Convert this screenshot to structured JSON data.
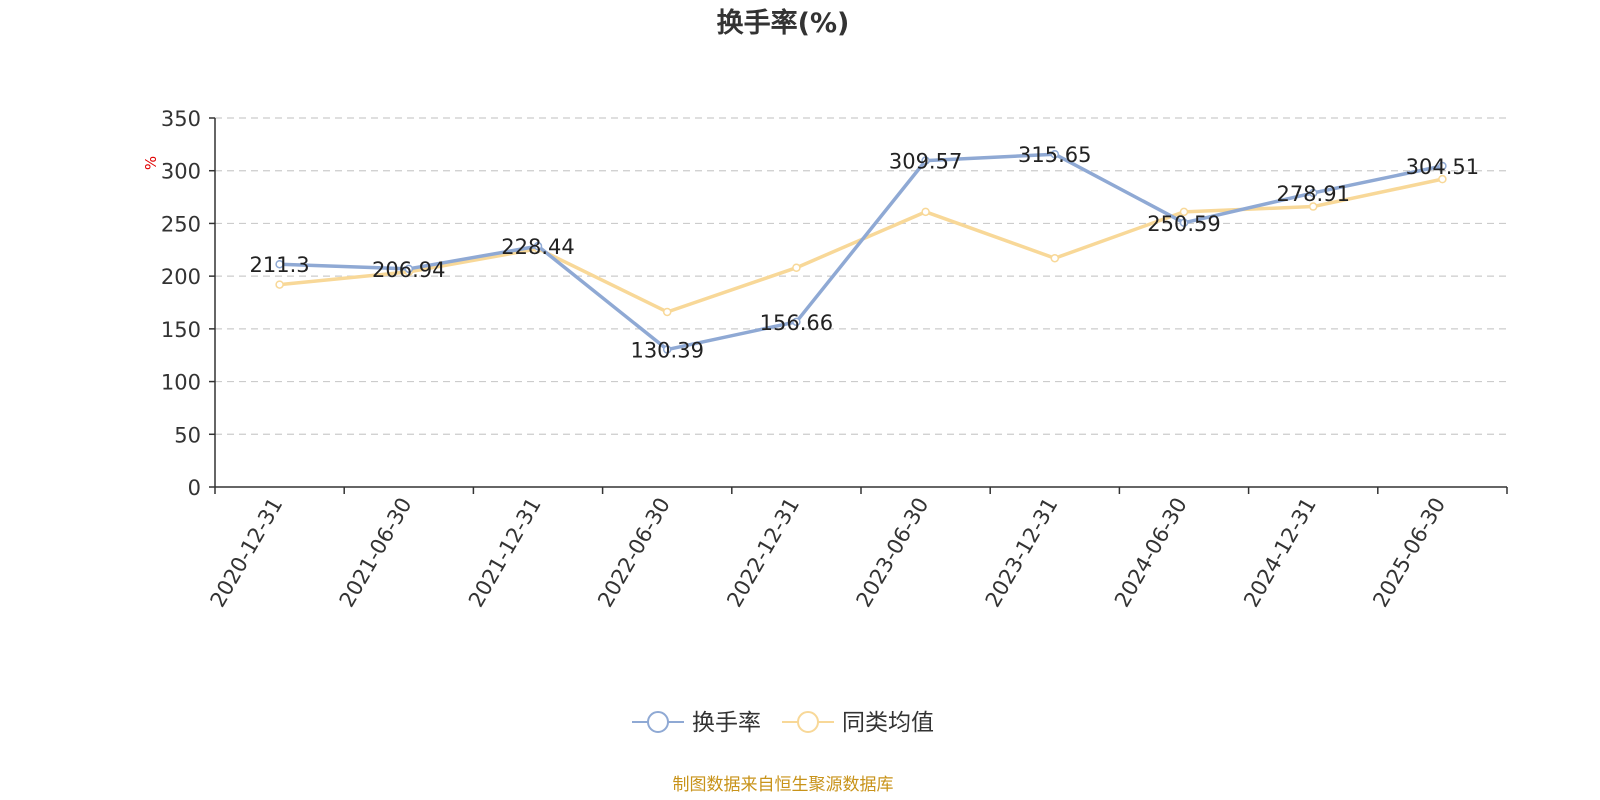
{
  "chart_data": {
    "type": "line",
    "title": "换手率(%)",
    "ylabel": "%",
    "xlabel": "",
    "categories": [
      "2020-12-31",
      "2021-06-30",
      "2021-12-31",
      "2022-06-30",
      "2022-12-31",
      "2023-06-30",
      "2023-12-31",
      "2024-06-30",
      "2024-12-31",
      "2025-06-30"
    ],
    "ylim": [
      0,
      350
    ],
    "yticks": [
      0,
      50,
      100,
      150,
      200,
      250,
      300,
      350
    ],
    "grid": true,
    "legend_position": "bottom",
    "series": [
      {
        "name": "换手率",
        "color": "#8fa9d4",
        "show_labels": true,
        "values": [
          211.3,
          206.94,
          228.44,
          130.39,
          156.66,
          309.57,
          315.65,
          250.59,
          278.91,
          304.51
        ],
        "labels": [
          "211.3",
          "206.94",
          "228.44",
          "130.39",
          "156.66",
          "309.57",
          "315.65",
          "250.59",
          "278.91",
          "304.51"
        ]
      },
      {
        "name": "同类均值",
        "color": "#f8d898",
        "show_labels": false,
        "values": [
          192,
          204,
          226,
          166,
          208,
          261,
          217,
          261,
          266,
          292
        ]
      }
    ]
  },
  "footer": {
    "source": "制图数据来自恒生聚源数据库",
    "color": "#c8931a"
  },
  "colors": {
    "axis": "#333333",
    "grid": "#cccccc",
    "ylabel": "#e00000",
    "text": "#333333"
  }
}
